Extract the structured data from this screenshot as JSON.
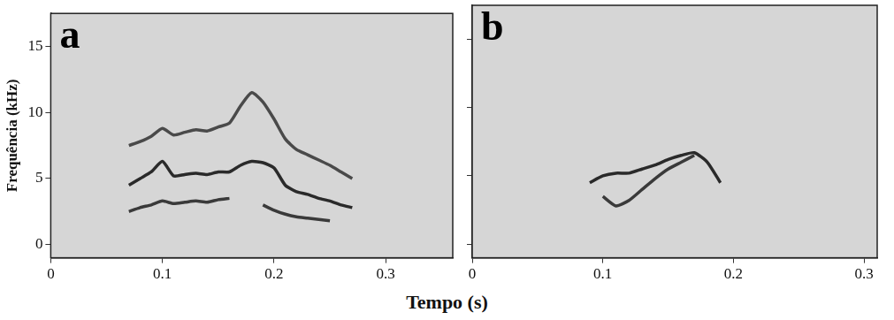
{
  "xlabel": "Tempo (s)",
  "chart_data": [
    {
      "type": "line",
      "panel_label": "a",
      "ylabel": "Frequência (kHz)",
      "grid": false,
      "xlim": [
        0,
        0.36
      ],
      "xticks": [
        0,
        0.1,
        0.2,
        0.3
      ],
      "ylim": [
        -1,
        17.5
      ],
      "yticks": [
        0,
        5,
        10,
        15
      ],
      "x": [
        0.07,
        0.08,
        0.09,
        0.1,
        0.11,
        0.12,
        0.13,
        0.14,
        0.15,
        0.16,
        0.17,
        0.18,
        0.19,
        0.2,
        0.21,
        0.22,
        0.23,
        0.24,
        0.25,
        0.26,
        0.27
      ],
      "series": [
        {
          "color": "#2a2a2a",
          "line_style": "solid",
          "values": [
            4.5,
            5.0,
            5.5,
            6.3,
            5.2,
            5.3,
            5.4,
            5.3,
            5.5,
            5.5,
            6.0,
            6.3,
            6.2,
            5.8,
            4.5,
            4.0,
            3.8,
            3.5,
            3.3,
            3.0,
            2.8
          ]
        },
        {
          "color": "#3a3a3a",
          "line_style": "solid",
          "values": [
            2.5,
            2.8,
            3.0,
            3.3,
            3.1,
            3.2,
            3.3,
            3.2,
            3.4,
            3.5,
            null,
            null,
            3.0,
            2.6,
            2.3,
            2.1,
            2.0,
            1.9,
            1.8,
            null,
            null
          ]
        },
        {
          "color": "#4a4a4a",
          "line_style": "solid",
          "values": [
            7.5,
            7.8,
            8.2,
            8.8,
            8.3,
            8.5,
            8.7,
            8.6,
            8.9,
            9.2,
            10.5,
            11.5,
            10.8,
            9.5,
            8.0,
            7.2,
            6.8,
            6.4,
            6.0,
            5.5,
            5.0
          ]
        }
      ]
    },
    {
      "type": "line",
      "panel_label": "b",
      "grid": false,
      "tick_labels": "x",
      "xlim": [
        0,
        0.31
      ],
      "xticks": [
        0,
        0.1,
        0.2,
        0.3
      ],
      "ylim": [
        -1,
        17.5
      ],
      "yticks": [
        0,
        5,
        10,
        15
      ],
      "x": [
        0.09,
        0.1,
        0.11,
        0.12,
        0.13,
        0.14,
        0.15,
        0.16,
        0.17,
        0.18,
        0.19
      ],
      "series": [
        {
          "color": "#2a2a2a",
          "line_style": "solid",
          "values": [
            4.5,
            5.0,
            5.2,
            5.2,
            5.5,
            5.8,
            6.2,
            6.5,
            6.7,
            6.0,
            4.5
          ]
        },
        {
          "color": "#3a3a3a",
          "line_style": "solid",
          "values": [
            null,
            3.5,
            2.8,
            3.2,
            4.0,
            4.8,
            5.5,
            6.0,
            6.5,
            null,
            null
          ]
        }
      ]
    }
  ]
}
